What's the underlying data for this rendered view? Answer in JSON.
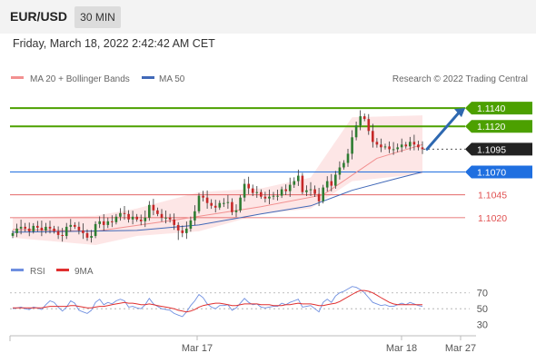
{
  "header": {
    "symbol": "EUR/USD",
    "timeframe": "30 MIN",
    "datetime": "Friday, March 18, 2022 2:42:42 AM CET"
  },
  "legend": {
    "bollinger": "MA 20 + Bollinger Bands",
    "ma50": "MA 50",
    "copyright": "Research © 2022 Trading Central",
    "rsi": "RSI",
    "rsi_ma": "9MA"
  },
  "colors": {
    "up": "#2e7d32",
    "down": "#c62828",
    "bollinger_fill": "#fde2e2",
    "ma20": "#f29090",
    "ma50": "#4169b8",
    "resistance": "#4ca000",
    "pivot": "#1f6fe0",
    "support": "#e05050",
    "current": "#222222",
    "arrow": "#2e68b0",
    "rsi": "#6f8fe0",
    "rsi_ma": "#e03030"
  },
  "chart_data": [
    {
      "type": "line",
      "title": "",
      "xlabel": "",
      "ylabel": "",
      "x_ticks": [
        "Mar 17",
        "Mar 18",
        "Mar 27"
      ],
      "ylim": [
        1.0995,
        1.1155
      ],
      "levels": [
        {
          "label": "1.1140",
          "value": 1.114,
          "kind": "resistance"
        },
        {
          "label": "1.1120",
          "value": 1.112,
          "kind": "resistance"
        },
        {
          "label": "1.1095",
          "value": 1.1095,
          "kind": "current"
        },
        {
          "label": "1.1070",
          "value": 1.107,
          "kind": "pivot"
        },
        {
          "label": "1.1045",
          "value": 1.1045,
          "kind": "support"
        },
        {
          "label": "1.1020",
          "value": 1.102,
          "kind": "support"
        }
      ],
      "candles_close": [
        1.1003,
        1.1008,
        1.101,
        1.1008,
        1.1005,
        1.1011,
        1.1009,
        1.1006,
        1.101,
        1.1008,
        1.1005,
        1.1001,
        1.1,
        1.101,
        1.1012,
        1.101,
        1.1006,
        1.1003,
        1.0998,
        1.1,
        1.1013,
        1.1016,
        1.1012,
        1.1016,
        1.1015,
        1.1021,
        1.1025,
        1.1024,
        1.1018,
        1.1021,
        1.1018,
        1.1016,
        1.102,
        1.1034,
        1.1028,
        1.1024,
        1.102,
        1.102,
        1.1018,
        1.1012,
        1.1006,
        1.1003,
        1.1008,
        1.1017,
        1.1027,
        1.1044,
        1.1042,
        1.1036,
        1.1033,
        1.1031,
        1.1036,
        1.1036,
        1.1037,
        1.1026,
        1.1028,
        1.1042,
        1.1057,
        1.1052,
        1.1047,
        1.1048,
        1.1043,
        1.1041,
        1.1043,
        1.1044,
        1.1044,
        1.1051,
        1.1049,
        1.1056,
        1.106,
        1.1066,
        1.1048,
        1.105,
        1.1051,
        1.1046,
        1.1038,
        1.1053,
        1.106,
        1.1055,
        1.1067,
        1.1075,
        1.108,
        1.109,
        1.1108,
        1.1121,
        1.1131,
        1.1128,
        1.1115,
        1.1103,
        1.11,
        1.1097,
        1.1098,
        1.1095,
        1.1095,
        1.1097,
        1.11,
        1.1098,
        1.1103,
        1.11,
        1.1097,
        1.1095
      ],
      "series": [
        {
          "name": "MA 20",
          "points": [
            [
              0,
              1.1007
            ],
            [
              20,
              1.1005
            ],
            [
              40,
              1.1018
            ],
            [
              60,
              1.1032
            ],
            [
              75,
              1.1045
            ],
            [
              88,
              1.1085
            ],
            [
              99,
              1.11
            ]
          ]
        },
        {
          "name": "MA 50",
          "points": [
            [
              0,
              1.1004
            ],
            [
              30,
              1.1006
            ],
            [
              45,
              1.1012
            ],
            [
              60,
              1.1024
            ],
            [
              72,
              1.1033
            ],
            [
              82,
              1.105
            ],
            [
              92,
              1.1062
            ],
            [
              99,
              1.107
            ]
          ]
        }
      ],
      "bands": {
        "upper_points": [
          [
            0,
            1.102
          ],
          [
            20,
            1.1022
          ],
          [
            30,
            1.103
          ],
          [
            45,
            1.1048
          ],
          [
            60,
            1.1052
          ],
          [
            72,
            1.1064
          ],
          [
            82,
            1.113
          ],
          [
            99,
            1.1132
          ]
        ],
        "lower_points": [
          [
            0,
            1.0998
          ],
          [
            20,
            1.099
          ],
          [
            30,
            1.1
          ],
          [
            45,
            1.1005
          ],
          [
            60,
            1.1024
          ],
          [
            72,
            1.103
          ],
          [
            82,
            1.106
          ],
          [
            99,
            1.1068
          ]
        ]
      },
      "forecast_arrow": {
        "from_value": 1.1095,
        "to_value": 1.114
      }
    },
    {
      "type": "line",
      "title": "",
      "xlabel": "",
      "ylabel": "",
      "ylim": [
        25,
        80
      ],
      "y_ticks": [
        70,
        50,
        30
      ],
      "series": [
        {
          "name": "RSI",
          "values": [
            50,
            51,
            52,
            50,
            49,
            52,
            51,
            49,
            55,
            60,
            58,
            52,
            47,
            52,
            60,
            57,
            48,
            46,
            44,
            48,
            58,
            62,
            55,
            58,
            56,
            60,
            62,
            60,
            52,
            53,
            51,
            50,
            55,
            63,
            56,
            53,
            50,
            49,
            48,
            44,
            42,
            40,
            46,
            54,
            60,
            68,
            64,
            56,
            52,
            50,
            54,
            54,
            55,
            48,
            51,
            57,
            63,
            58,
            55,
            56,
            52,
            51,
            52,
            53,
            53,
            57,
            55,
            58,
            60,
            62,
            52,
            53,
            54,
            50,
            46,
            58,
            62,
            58,
            66,
            70,
            72,
            75,
            78,
            77,
            74,
            70,
            64,
            58,
            56,
            54,
            55,
            53,
            53,
            55,
            57,
            55,
            58,
            56,
            54,
            53
          ]
        },
        {
          "name": "9MA",
          "values": [
            51,
            51,
            51,
            51,
            51,
            51,
            51,
            51,
            52,
            53,
            53,
            53,
            53,
            53,
            54,
            54,
            53,
            52,
            51,
            51,
            52,
            53,
            53,
            54,
            55,
            56,
            57,
            58,
            57,
            57,
            56,
            55,
            55,
            56,
            55,
            54,
            53,
            52,
            51,
            50,
            48,
            47,
            46,
            47,
            49,
            52,
            54,
            55,
            56,
            57,
            57,
            56,
            55,
            54,
            54,
            55,
            56,
            56,
            56,
            56,
            55,
            55,
            55,
            54,
            54,
            54,
            55,
            55,
            56,
            57,
            56,
            56,
            56,
            55,
            54,
            54,
            55,
            56,
            57,
            59,
            62,
            65,
            68,
            71,
            73,
            73,
            72,
            70,
            67,
            64,
            61,
            58,
            56,
            55,
            55,
            55,
            55,
            55,
            55,
            55
          ]
        }
      ]
    }
  ]
}
